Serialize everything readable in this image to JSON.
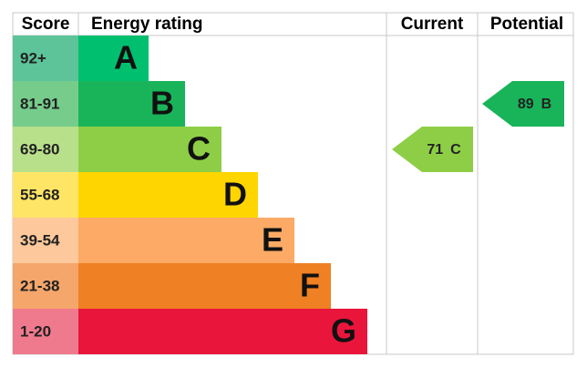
{
  "header": {
    "score": "Score",
    "rating": "Energy rating",
    "current": "Current",
    "potential": "Potential"
  },
  "bands": [
    {
      "score": "92+",
      "letter": "A",
      "color": "#00c06f",
      "score_color": "#5cc498"
    },
    {
      "score": "81-91",
      "letter": "B",
      "color": "#19b459",
      "score_color": "#75cc8b"
    },
    {
      "score": "69-80",
      "letter": "C",
      "color": "#8dce46",
      "score_color": "#b8e08b"
    },
    {
      "score": "55-68",
      "letter": "D",
      "color": "#ffd500",
      "score_color": "#ffe566"
    },
    {
      "score": "39-54",
      "letter": "E",
      "color": "#fcaa65",
      "score_color": "#fdc89b"
    },
    {
      "score": "21-38",
      "letter": "F",
      "color": "#ef8023",
      "score_color": "#f5a66b"
    },
    {
      "score": "1-20",
      "letter": "G",
      "color": "#e9153b",
      "score_color": "#f07a8d"
    }
  ],
  "current": {
    "value": 71,
    "letter": "C",
    "color": "#8dce46"
  },
  "potential": {
    "value": 89,
    "letter": "B",
    "color": "#19b459"
  }
}
